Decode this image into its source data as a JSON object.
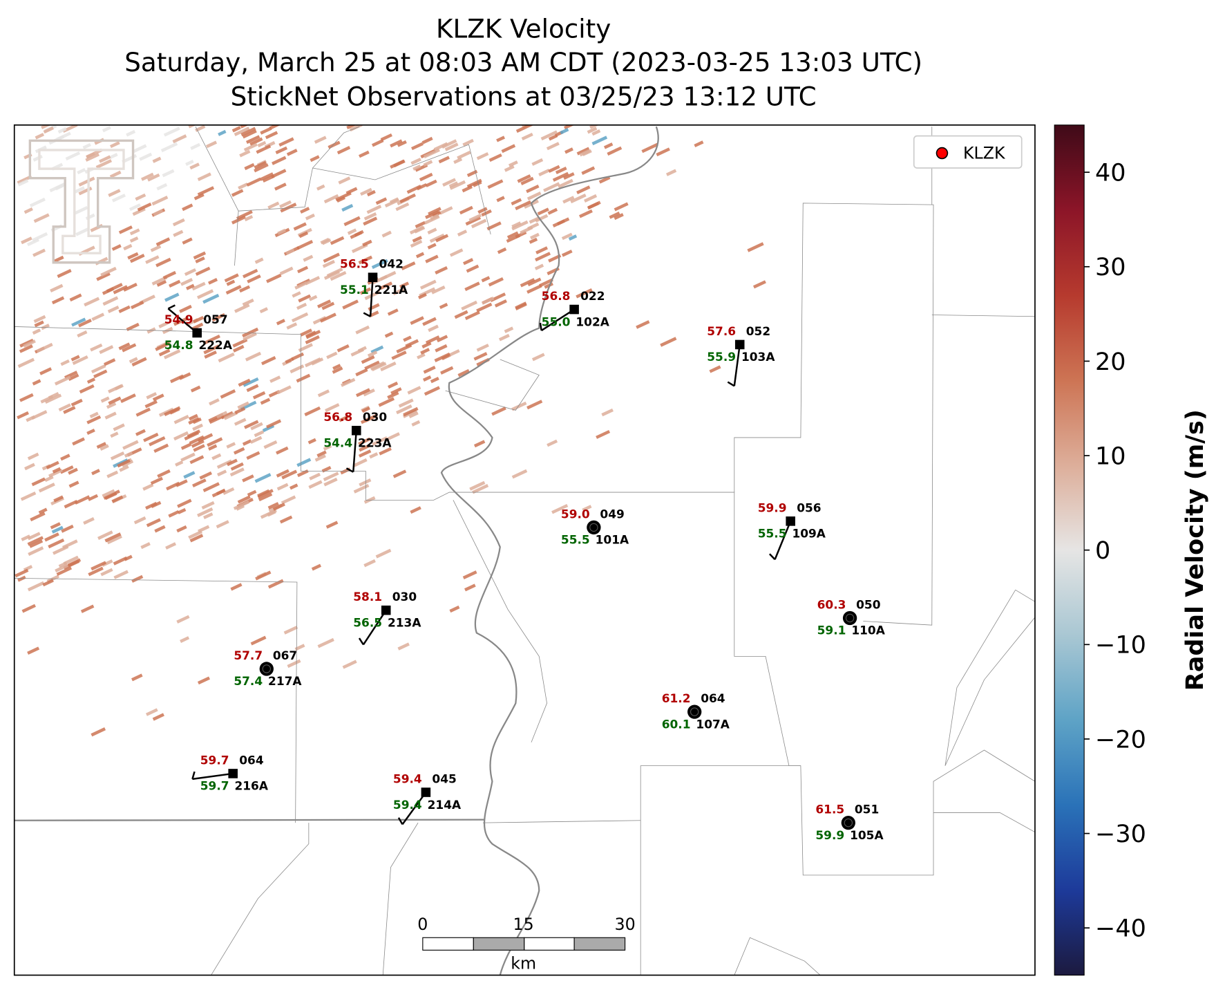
{
  "title_lines": [
    "KLZK Velocity",
    "Saturday, March 25 at 08:03 AM CDT (2023-03-25 13:03 UTC)",
    "StickNet Observations at 03/25/23 13:12 UTC"
  ],
  "legend": {
    "label": "KLZK",
    "color": "#ff0000"
  },
  "colorbar": {
    "label": "Radial Velocity (m/s)",
    "range": [
      -45,
      45
    ],
    "ticks": [
      40,
      30,
      20,
      10,
      0,
      {
        "value": -10,
        "label": "−10"
      },
      {
        "value": -20,
        "label": "−20"
      },
      {
        "value": -30,
        "label": "−30"
      },
      {
        "value": -40,
        "label": "−40"
      }
    ],
    "colors": [
      "#1c1a3f",
      "#1d3a9a",
      "#2a72b8",
      "#5ea3c6",
      "#a9c7d3",
      "#e6e5e4",
      "#ddae9a",
      "#cd7454",
      "#b63a2e",
      "#8c1528",
      "#3f0a18"
    ]
  },
  "stations": [
    {
      "id": "222A",
      "temperature": "54.9",
      "dewpoint": "54.8",
      "code": "057"
    },
    {
      "id": "221A",
      "temperature": "56.5",
      "dewpoint": "55.1",
      "code": "042"
    },
    {
      "id": "102A",
      "temperature": "56.8",
      "dewpoint": "55.0",
      "code": "022"
    },
    {
      "id": "103A",
      "temperature": "57.6",
      "dewpoint": "55.9",
      "code": "052"
    },
    {
      "id": "223A",
      "temperature": "56.8",
      "dewpoint": "54.4",
      "code": "030"
    },
    {
      "id": "101A",
      "temperature": "59.0",
      "dewpoint": "55.5",
      "code": "049"
    },
    {
      "id": "109A",
      "temperature": "59.9",
      "dewpoint": "55.5",
      "code": "056"
    },
    {
      "id": "110A",
      "temperature": "60.3",
      "dewpoint": "59.1",
      "code": "050"
    },
    {
      "id": "213A",
      "temperature": "58.1",
      "dewpoint": "56.5",
      "code": "030"
    },
    {
      "id": "217A",
      "temperature": "57.7",
      "dewpoint": "57.4",
      "code": "067"
    },
    {
      "id": "107A",
      "temperature": "61.2",
      "dewpoint": "60.1",
      "code": "064"
    },
    {
      "id": "216A",
      "temperature": "59.7",
      "dewpoint": "59.7",
      "code": "064"
    },
    {
      "id": "214A",
      "temperature": "59.4",
      "dewpoint": "59.4",
      "code": "045"
    },
    {
      "id": "105A",
      "temperature": "61.5",
      "dewpoint": "59.9",
      "code": "051"
    }
  ],
  "scale_bar": {
    "ticks": [
      "0",
      "15",
      "30"
    ],
    "unit": "km"
  }
}
